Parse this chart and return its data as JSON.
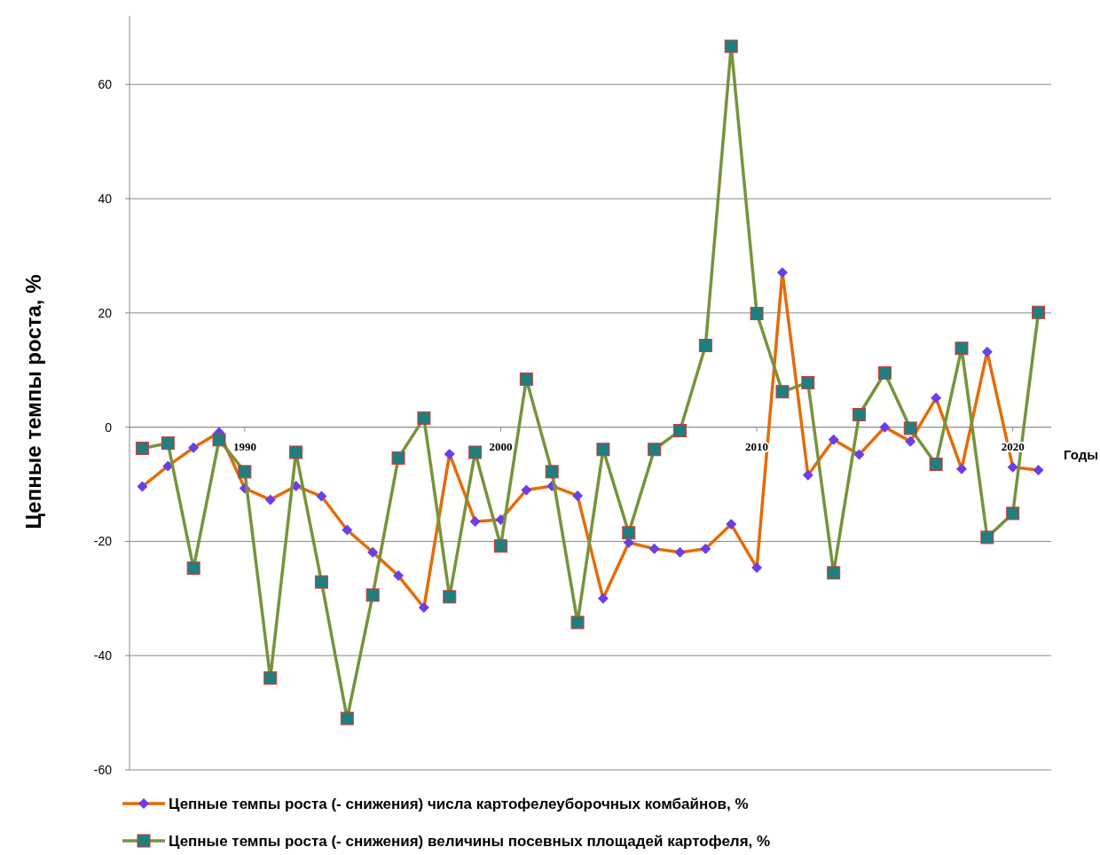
{
  "chart_data": {
    "type": "line",
    "xlabel": "Годы",
    "ylabel": "Цепные темпы роста, %",
    "x": [
      1986,
      1987,
      1988,
      1989,
      1990,
      1991,
      1992,
      1993,
      1994,
      1995,
      1996,
      1997,
      1998,
      1999,
      2000,
      2001,
      2002,
      2003,
      2004,
      2005,
      2006,
      2007,
      2008,
      2009,
      2010,
      2011,
      2012,
      2013,
      2014,
      2015,
      2016,
      2017,
      2018,
      2019,
      2020,
      2021
    ],
    "series": [
      {
        "name": "Цепные темпы роста (- снижения) числа картофелеуборочных комбайнов, %",
        "color": "#e46c0a",
        "marker": "diamond",
        "values": [
          -10.4,
          -6.8,
          -3.6,
          -0.9,
          -10.7,
          -12.7,
          -10.3,
          -12.1,
          -18,
          -21.9,
          -26,
          -31.6,
          -4.7,
          -16.5,
          -16.2,
          -11,
          -10.3,
          -12,
          -30,
          -20.2,
          -21.3,
          -21.9,
          -21.3,
          -17,
          -24.6,
          27.1,
          -8.4,
          -2.2,
          -4.8,
          0,
          -2.5,
          5.1,
          -7.3,
          13.2,
          -7,
          -7.5
        ]
      },
      {
        "name": "Цепные темпы роста (- снижения) величины посевных площадей картофеля, %",
        "color": "#77933c",
        "marker": "square",
        "values": [
          -3.7,
          -2.8,
          -24.7,
          -2.2,
          -7.8,
          -43.9,
          -4.4,
          -27.1,
          -51,
          -29.4,
          -5.4,
          1.6,
          -29.7,
          -4.4,
          -20.8,
          8.4,
          -7.8,
          -34.2,
          -3.9,
          -18.5,
          -3.9,
          -0.6,
          14.3,
          66.7,
          19.9,
          6.2,
          7.8,
          -25.5,
          2.2,
          9.5,
          -0.2,
          -6.5,
          13.8,
          -19.3,
          -15.1,
          20.1
        ]
      }
    ],
    "xlim": [
      1985.5,
      2021.5
    ],
    "xticks": [
      1990,
      2000,
      2010,
      2020
    ],
    "ylim": [
      -60,
      72
    ],
    "yticks": [
      -60,
      -40,
      -20,
      0,
      20,
      40,
      60
    ],
    "grid": "y",
    "legend": "bottom"
  }
}
